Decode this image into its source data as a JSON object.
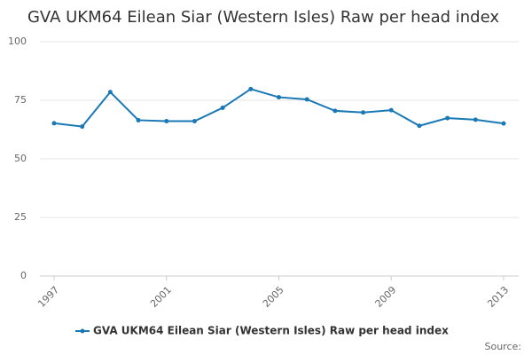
{
  "chart_data": {
    "type": "line",
    "title": "GVA UKM64 Eilean Siar (Western Isles) Raw per head index",
    "x": [
      1997,
      1998,
      1999,
      2000,
      2001,
      2002,
      2003,
      2004,
      2005,
      2006,
      2007,
      2008,
      2009,
      2010,
      2011,
      2012,
      2013
    ],
    "series": [
      {
        "name": "GVA UKM64 Eilean Siar (Western Isles) Raw per head index",
        "color": "#1a78b4",
        "values": [
          65.2,
          63.8,
          78.5,
          66.5,
          66.1,
          66.1,
          71.8,
          79.8,
          76.3,
          75.4,
          70.5,
          69.8,
          70.8,
          64.1,
          67.4,
          66.7,
          65.1
        ]
      }
    ],
    "xlim": [
      1997,
      2013
    ],
    "xticks": [
      1997,
      2001,
      2005,
      2009,
      2013
    ],
    "ylim": [
      0,
      100
    ],
    "yticks": [
      0,
      25,
      50,
      75,
      100
    ],
    "grid": true,
    "source": "Source:"
  }
}
